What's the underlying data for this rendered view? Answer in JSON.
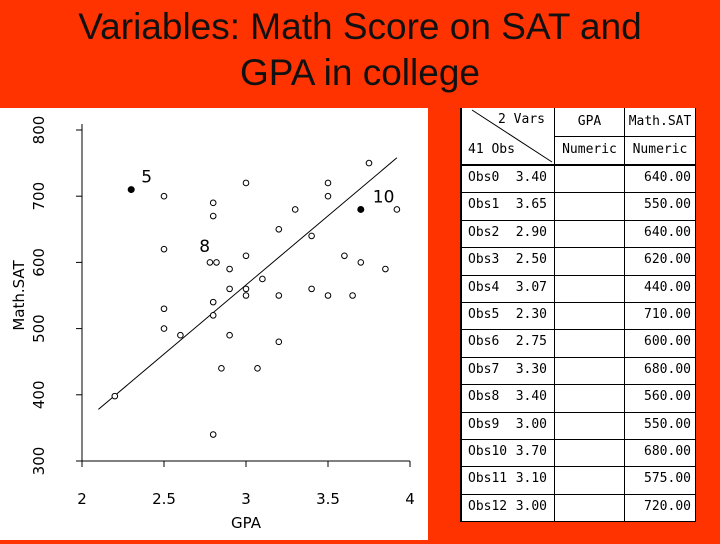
{
  "title": {
    "line1": "Variables: Math Score on SAT and",
    "line2": "GPA in college"
  },
  "chart_data": {
    "type": "scatter",
    "xlabel": "GPA",
    "ylabel": "Math.SAT",
    "xlim": [
      2,
      4
    ],
    "ylim": [
      300,
      800
    ],
    "xticks": [
      "2",
      "2.5",
      "3",
      "3.5",
      "4"
    ],
    "yticks": [
      "300",
      "400",
      "500",
      "600",
      "700",
      "800"
    ],
    "grid": false,
    "regression_line": {
      "x": [
        2.1,
        3.92
      ],
      "y": [
        378,
        758
      ]
    },
    "annotations": [
      {
        "label": "5",
        "x": 2.3,
        "y": 710
      },
      {
        "label": "10",
        "x": 3.7,
        "y": 680
      },
      {
        "label": "8",
        "x": 2.8,
        "y": 640
      }
    ],
    "highlighted_points": [
      {
        "x": 2.3,
        "y": 710
      },
      {
        "x": 3.7,
        "y": 680
      }
    ],
    "points": [
      {
        "x": 2.2,
        "y": 398
      },
      {
        "x": 2.5,
        "y": 700
      },
      {
        "x": 2.5,
        "y": 620
      },
      {
        "x": 2.5,
        "y": 530
      },
      {
        "x": 2.5,
        "y": 500
      },
      {
        "x": 2.6,
        "y": 490
      },
      {
        "x": 2.8,
        "y": 690
      },
      {
        "x": 2.8,
        "y": 670
      },
      {
        "x": 2.78,
        "y": 600
      },
      {
        "x": 2.82,
        "y": 600
      },
      {
        "x": 2.8,
        "y": 540
      },
      {
        "x": 2.8,
        "y": 520
      },
      {
        "x": 2.85,
        "y": 440
      },
      {
        "x": 2.8,
        "y": 340
      },
      {
        "x": 2.9,
        "y": 590
      },
      {
        "x": 2.9,
        "y": 560
      },
      {
        "x": 2.9,
        "y": 490
      },
      {
        "x": 3.0,
        "y": 720
      },
      {
        "x": 3.0,
        "y": 610
      },
      {
        "x": 3.0,
        "y": 550
      },
      {
        "x": 3.0,
        "y": 560
      },
      {
        "x": 3.07,
        "y": 440
      },
      {
        "x": 3.1,
        "y": 575
      },
      {
        "x": 3.2,
        "y": 650
      },
      {
        "x": 3.2,
        "y": 550
      },
      {
        "x": 3.2,
        "y": 480
      },
      {
        "x": 3.3,
        "y": 680
      },
      {
        "x": 3.4,
        "y": 640
      },
      {
        "x": 3.4,
        "y": 560
      },
      {
        "x": 3.5,
        "y": 720
      },
      {
        "x": 3.5,
        "y": 700
      },
      {
        "x": 3.5,
        "y": 550
      },
      {
        "x": 3.6,
        "y": 610
      },
      {
        "x": 3.65,
        "y": 550
      },
      {
        "x": 3.7,
        "y": 600
      },
      {
        "x": 3.75,
        "y": 750
      },
      {
        "x": 3.85,
        "y": 590
      },
      {
        "x": 3.92,
        "y": 680
      }
    ]
  },
  "table": {
    "corner_top": "2 Vars",
    "corner_bottom": "41 Obs",
    "columns": [
      {
        "name": "GPA",
        "type": "Numeric"
      },
      {
        "name": "Math.SAT",
        "type": "Numeric"
      }
    ],
    "rows": [
      [
        "Obs0",
        "3.40",
        "640.00"
      ],
      [
        "Obs1",
        "3.65",
        "550.00"
      ],
      [
        "Obs2",
        "2.90",
        "640.00"
      ],
      [
        "Obs3",
        "2.50",
        "620.00"
      ],
      [
        "Obs4",
        "3.07",
        "440.00"
      ],
      [
        "Obs5",
        "2.30",
        "710.00"
      ],
      [
        "Obs6",
        "2.75",
        "600.00"
      ],
      [
        "Obs7",
        "3.30",
        "680.00"
      ],
      [
        "Obs8",
        "3.40",
        "560.00"
      ],
      [
        "Obs9",
        "3.00",
        "550.00"
      ],
      [
        "Obs10",
        "3.70",
        "680.00"
      ],
      [
        "Obs11",
        "3.10",
        "575.00"
      ],
      [
        "Obs12",
        "3.00",
        "720.00"
      ]
    ]
  }
}
